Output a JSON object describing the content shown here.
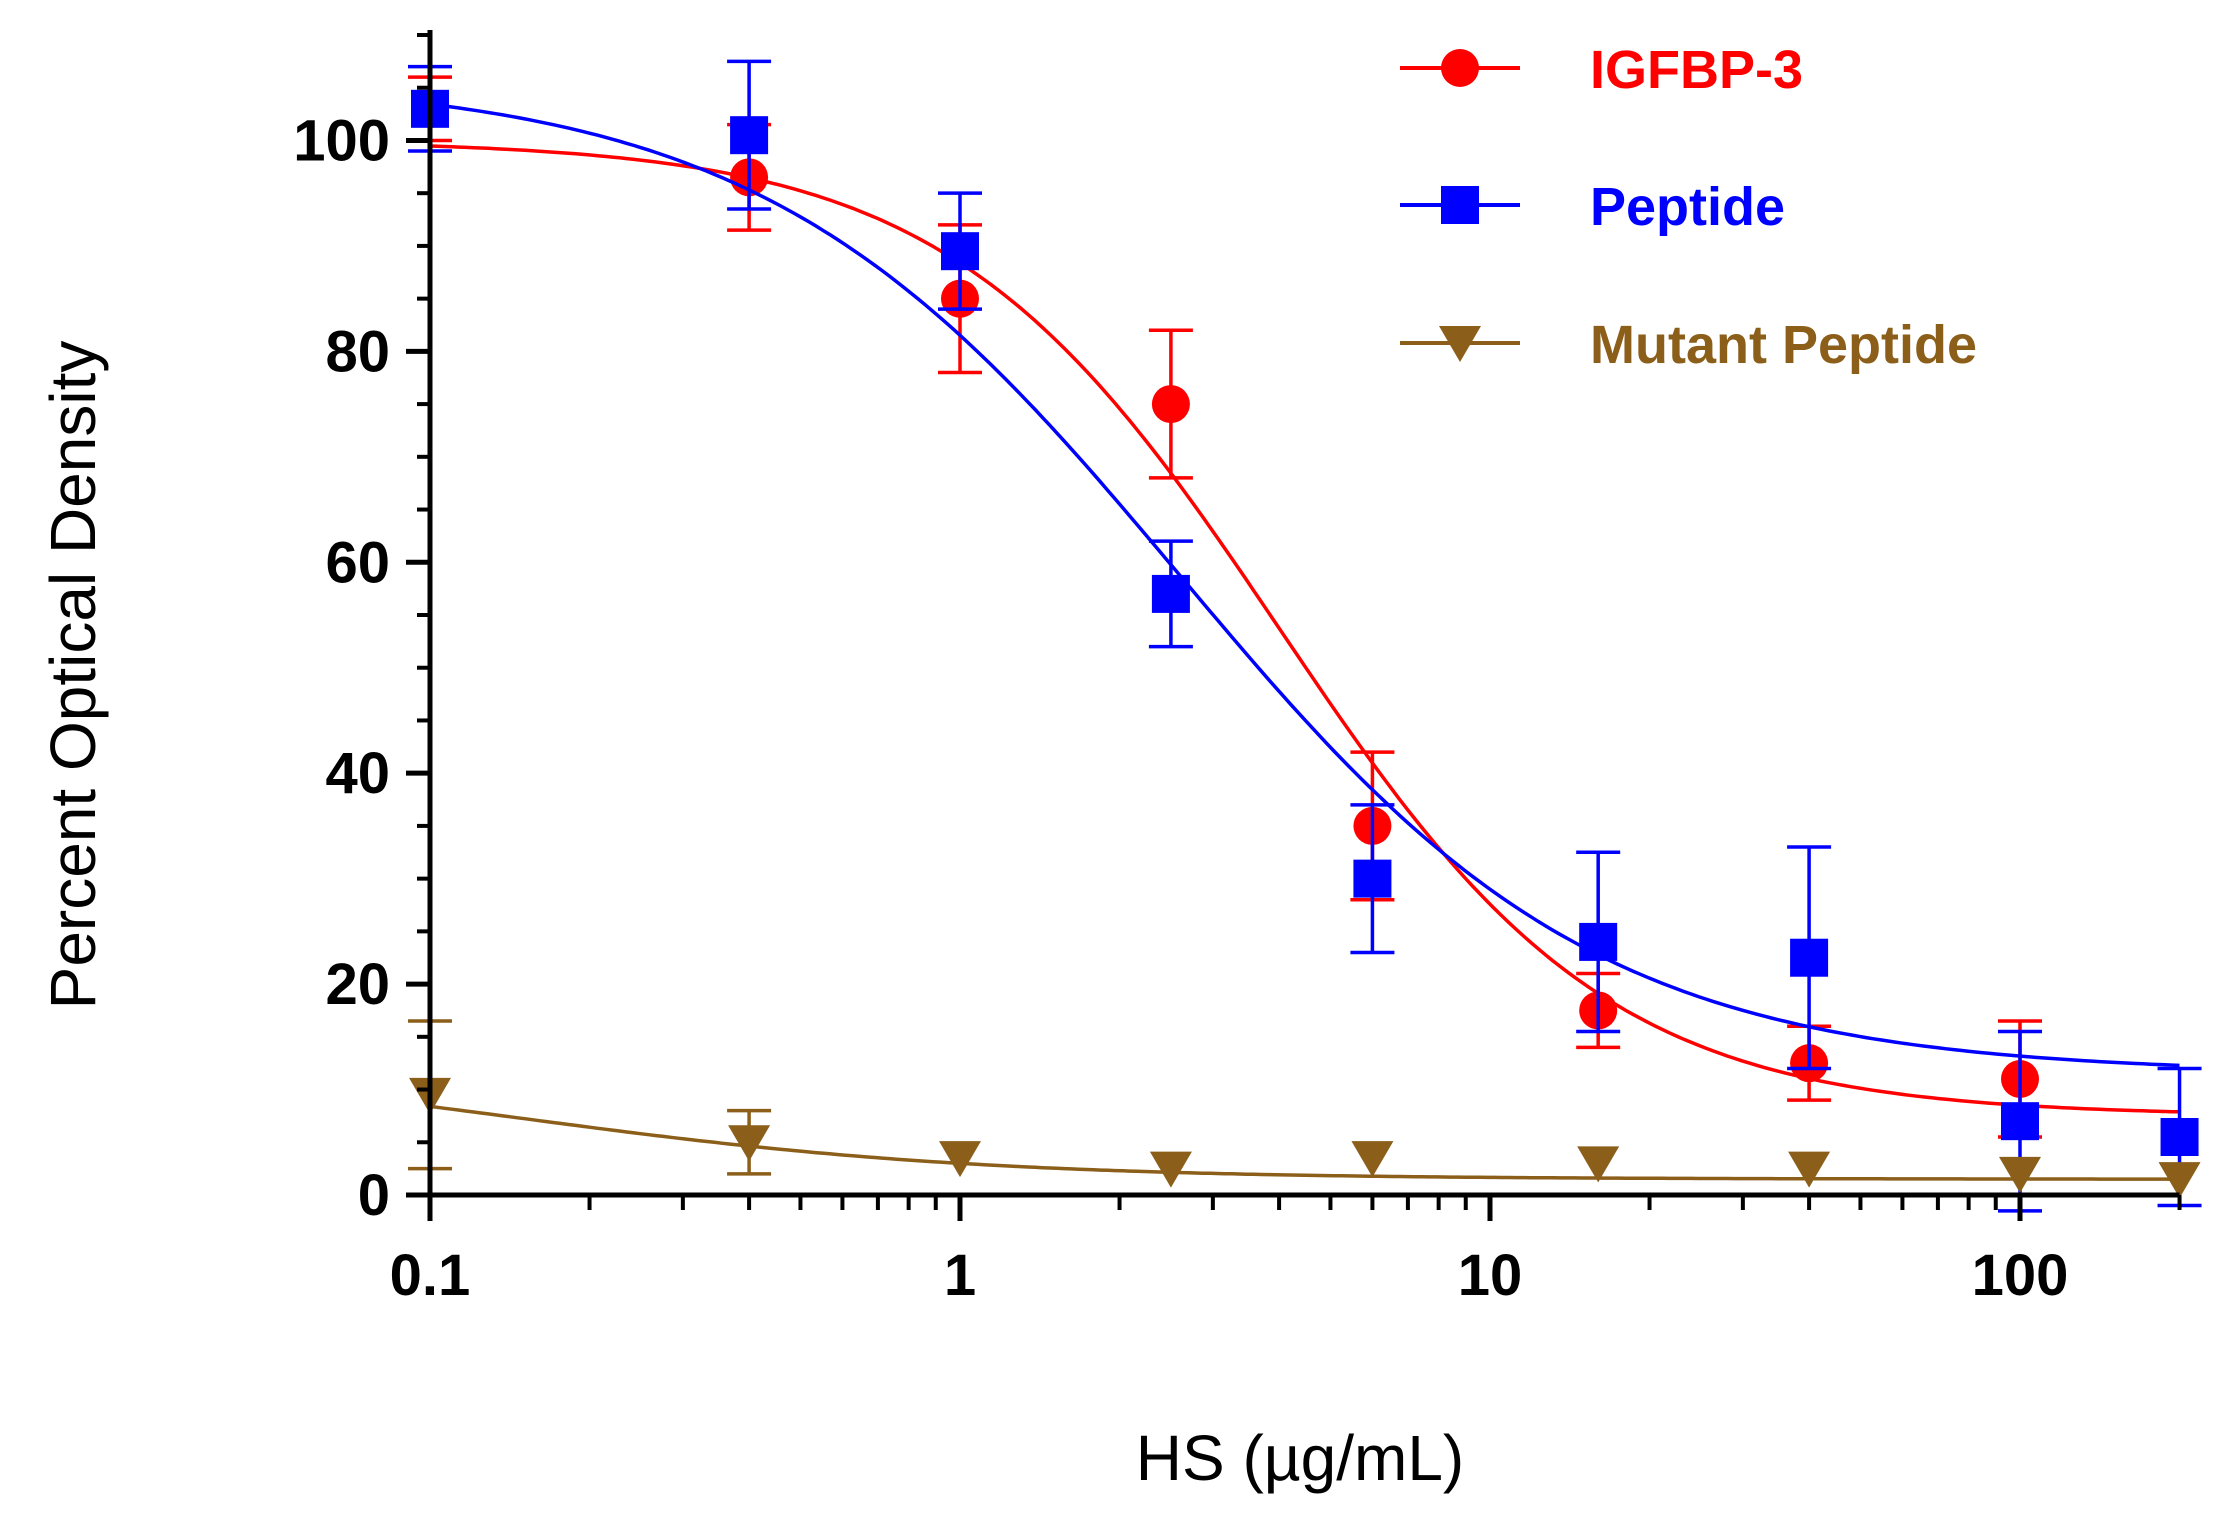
{
  "chart_data": {
    "type": "scatter",
    "title": "",
    "xlabel": "HS (µg/mL)",
    "ylabel": "Percent Optical Density",
    "xscale": "log",
    "xlim": [
      0.1,
      200
    ],
    "ylim": [
      0,
      110
    ],
    "x_ticks": [
      {
        "value": 0.1,
        "label": "0.1"
      },
      {
        "value": 1,
        "label": "1"
      },
      {
        "value": 10,
        "label": "10"
      },
      {
        "value": 100,
        "label": "100"
      }
    ],
    "y_ticks": [
      {
        "value": 0,
        "label": "0"
      },
      {
        "value": 20,
        "label": "20"
      },
      {
        "value": 40,
        "label": "40"
      },
      {
        "value": 60,
        "label": "60"
      },
      {
        "value": 80,
        "label": "80"
      },
      {
        "value": 100,
        "label": "100"
      }
    ],
    "legend_position": "top-right",
    "series": [
      {
        "name": "IGFBP-3",
        "color": "#ff0000",
        "marker": "circle",
        "x": [
          0.1,
          0.4,
          1,
          2.5,
          6,
          16,
          40,
          100
        ],
        "y": [
          103,
          96.5,
          85,
          75,
          35,
          17.5,
          12.5,
          11
        ],
        "err": [
          3,
          5,
          7,
          7,
          7,
          3.5,
          3.5,
          5.5
        ],
        "fit": {
          "bottom": 7.5,
          "top": 100,
          "ec50": 4.0,
          "hill": 1.4
        }
      },
      {
        "name": "Peptide",
        "color": "#0000ff",
        "marker": "square",
        "x": [
          0.1,
          0.4,
          1,
          2.5,
          6,
          16,
          40,
          100,
          200
        ],
        "y": [
          103,
          100.5,
          89.5,
          57,
          30,
          24,
          22.5,
          7,
          5.5
        ],
        "err": [
          4,
          7,
          5.5,
          5,
          7,
          8.5,
          10.5,
          8.5,
          6.5
        ],
        "fit": {
          "bottom": 11.5,
          "top": 106,
          "ec50": 2.6,
          "hill": 1.1
        }
      },
      {
        "name": "Mutant Peptide",
        "color": "#8b5e1a",
        "marker": "triangle-down",
        "x": [
          0.1,
          0.4,
          1,
          2.5,
          6,
          16,
          40,
          100,
          200
        ],
        "y": [
          9.5,
          5,
          3.5,
          2.5,
          3.5,
          3,
          2.5,
          2,
          1.5
        ],
        "err": [
          7,
          3,
          0,
          0,
          0,
          0,
          0,
          0,
          0
        ],
        "fit": {
          "bottom": 1.5,
          "top": 13,
          "ec50": 0.15,
          "hill": 1.0
        }
      }
    ]
  }
}
